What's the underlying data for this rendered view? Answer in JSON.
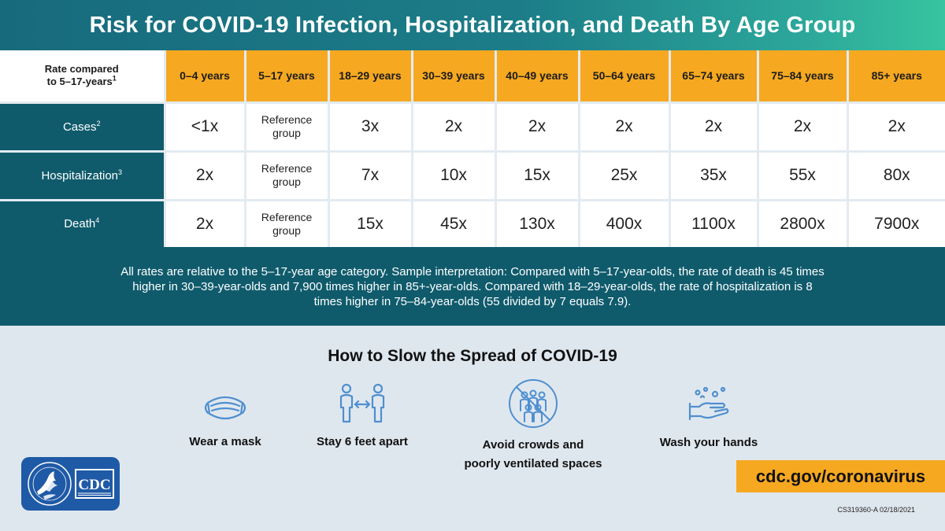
{
  "title": "Risk for COVID-19 Infection, Hospitalization, and Death By Age Group",
  "table": {
    "corner_label": "Rate compared\nto 5–17-years",
    "corner_sup": "1",
    "columns": [
      "0–4 years",
      "5–17 years",
      "18–29 years",
      "30–39 years",
      "40–49 years",
      "50–64 years",
      "65–74 years",
      "75–84 years",
      "85+ years"
    ],
    "rows": [
      {
        "label": "Cases",
        "sup": "2",
        "values": [
          "<1x",
          "Reference group",
          "3x",
          "2x",
          "2x",
          "2x",
          "2x",
          "2x",
          "2x"
        ]
      },
      {
        "label": "Hospitalization",
        "sup": "3",
        "values": [
          "2x",
          "Reference group",
          "7x",
          "10x",
          "15x",
          "25x",
          "35x",
          "55x",
          "80x"
        ]
      },
      {
        "label": "Death",
        "sup": "4",
        "values": [
          "2x",
          "Reference group",
          "15x",
          "45x",
          "130x",
          "400x",
          "1100x",
          "2800x",
          "7900x"
        ]
      }
    ]
  },
  "note": "All rates are relative to the 5–17-year age category. Sample interpretation: Compared with 5–17-year-olds, the rate of death is 45 times higher in 30–39-year-olds and 7,900 times higher in 85+-year-olds. Compared with 18–29-year-olds, the rate of hospitalization is 8 times higher in 75–84-year-olds (55 divided by 7 equals 7.9).",
  "spread": {
    "title": "How to Slow the Spread of COVID-19",
    "actions": [
      {
        "label": "Wear a mask",
        "icon": "mask-icon"
      },
      {
        "label": "Stay 6 feet apart",
        "icon": "distance-icon"
      },
      {
        "label": "Avoid crowds and\npoorly ventilated spaces",
        "icon": "no-crowds-icon"
      },
      {
        "label": "Wash your hands",
        "icon": "handwash-icon"
      }
    ]
  },
  "logo": {
    "text": "CDC"
  },
  "url": "cdc.gov/coronavirus",
  "code": "CS319360-A 02/18/2021",
  "colors": {
    "teal": "#0f5b6c",
    "orange": "#f6a821",
    "icon_blue": "#4f8fd0",
    "cdc_blue": "#1f5aa6"
  }
}
